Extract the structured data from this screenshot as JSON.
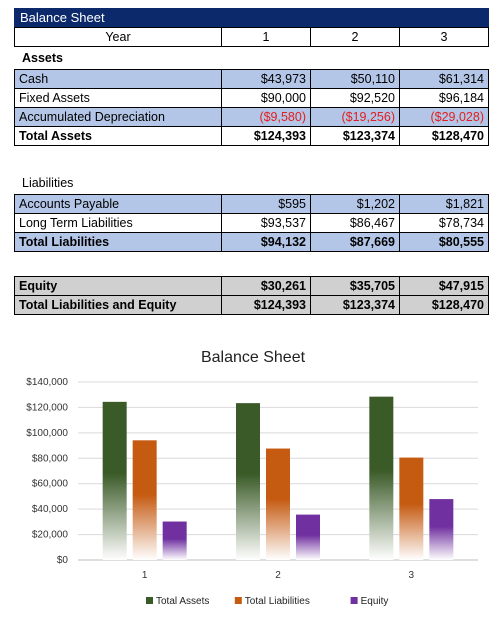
{
  "sheet_title": "Balance Sheet",
  "header": {
    "label": "Year",
    "years": [
      "1",
      "2",
      "3"
    ]
  },
  "assets": {
    "heading": "Assets",
    "rows": [
      {
        "label": "Cash",
        "values": [
          "$43,973",
          "$50,110",
          "$61,314"
        ]
      },
      {
        "label": "Fixed Assets",
        "values": [
          "$90,000",
          "$92,520",
          "$96,184"
        ]
      },
      {
        "label": "Accumulated Depreciation",
        "values": [
          "($9,580)",
          "($19,256)",
          "($29,028)"
        ]
      }
    ],
    "total": {
      "label": "Total Assets",
      "values": [
        "$124,393",
        "$123,374",
        "$128,470"
      ]
    }
  },
  "liabilities": {
    "heading": "Liabilities",
    "rows": [
      {
        "label": "Accounts Payable",
        "values": [
          "$595",
          "$1,202",
          "$1,821"
        ]
      },
      {
        "label": "Long Term Liabilities",
        "values": [
          "$93,537",
          "$86,467",
          "$78,734"
        ]
      }
    ],
    "total": {
      "label": "Total Liabilities",
      "values": [
        "$94,132",
        "$87,669",
        "$80,555"
      ]
    }
  },
  "equity": {
    "row": {
      "label": "Equity",
      "values": [
        "$30,261",
        "$35,705",
        "$47,915"
      ]
    },
    "total": {
      "label": "Total Liabilities and Equity",
      "values": [
        "$124,393",
        "$123,374",
        "$128,470"
      ]
    }
  },
  "colors": {
    "title_bar": "#0c2a6b",
    "row_blue": "#b4c6e7",
    "row_gray": "#d0d0d0",
    "negative": "#e02020"
  },
  "chart_data": {
    "type": "bar",
    "title": "Balance Sheet",
    "categories": [
      "1",
      "2",
      "3"
    ],
    "series": [
      {
        "name": "Total Assets",
        "values": [
          124393,
          123374,
          128470
        ],
        "color": "#3a5a27"
      },
      {
        "name": "Total Liabilities",
        "values": [
          94132,
          87669,
          80555
        ],
        "color": "#c55a11"
      },
      {
        "name": "Equity",
        "values": [
          30261,
          35705,
          47915
        ],
        "color": "#7030a0"
      }
    ],
    "ylim": [
      0,
      140000
    ],
    "yticks": [
      "$0",
      "$20,000",
      "$40,000",
      "$60,000",
      "$80,000",
      "$100,000",
      "$120,000",
      "$140,000"
    ],
    "grid": true,
    "legend": "bottom"
  }
}
